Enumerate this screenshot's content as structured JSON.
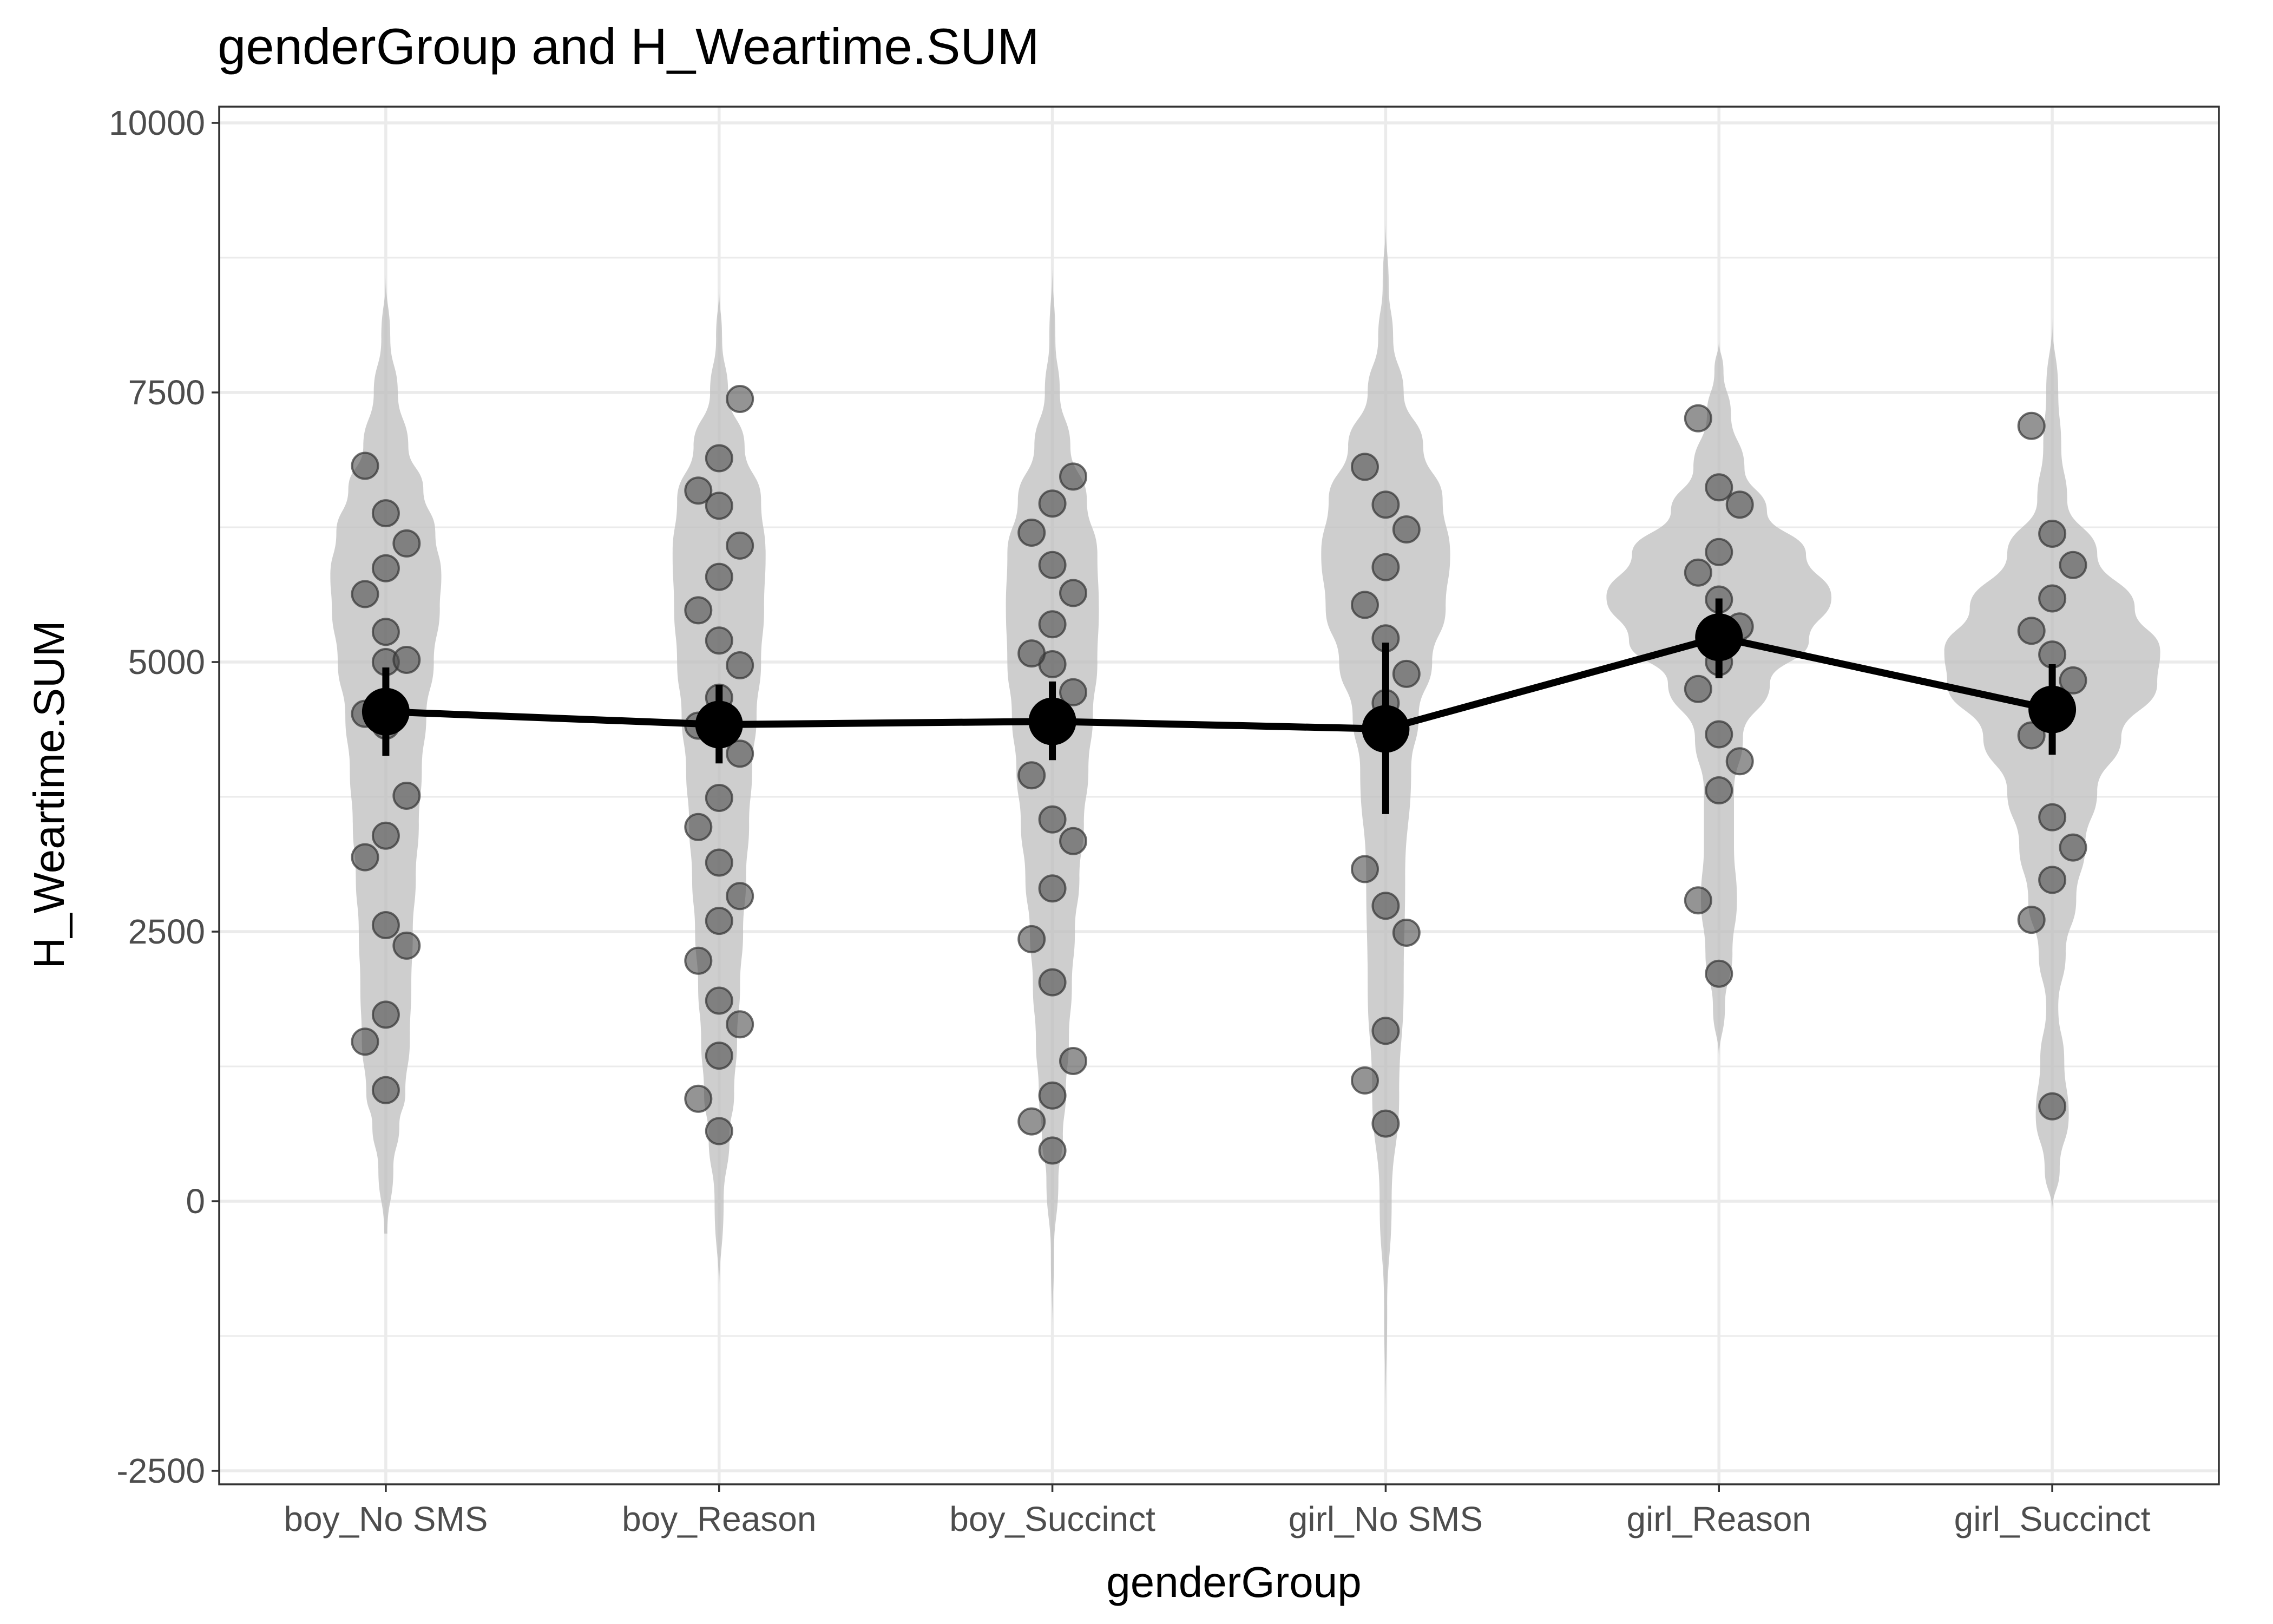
{
  "chart_data": {
    "type": "violin",
    "title": "genderGroup and H_Weartime.SUM",
    "xlabel": "genderGroup",
    "ylabel": "H_Weartime.SUM",
    "ylim": [
      -2500,
      10000
    ],
    "yticks": [
      -2500,
      0,
      2500,
      5000,
      7500,
      10000
    ],
    "grid": true,
    "categories": [
      "boy_No SMS",
      "boy_Reason",
      "boy_Succinct",
      "girl_No SMS",
      "girl_Reason",
      "girl_Succinct"
    ],
    "colors": {
      "violin": "#bdbdbd",
      "points": "#4d4d4d",
      "mean": "#000000"
    },
    "violins": [
      {
        "ymin": -300,
        "ymax": 8600,
        "profile": [
          [
            -300,
            0.01
          ],
          [
            300,
            0.05
          ],
          [
            700,
            0.09
          ],
          [
            1000,
            0.13
          ],
          [
            1500,
            0.16
          ],
          [
            2000,
            0.17
          ],
          [
            2500,
            0.18
          ],
          [
            3000,
            0.2
          ],
          [
            3500,
            0.22
          ],
          [
            4000,
            0.24
          ],
          [
            4500,
            0.27
          ],
          [
            5000,
            0.32
          ],
          [
            5500,
            0.36
          ],
          [
            5800,
            0.37
          ],
          [
            6200,
            0.33
          ],
          [
            6600,
            0.25
          ],
          [
            7000,
            0.15
          ],
          [
            7500,
            0.08
          ],
          [
            8000,
            0.03
          ],
          [
            8600,
            0.0
          ]
        ]
      },
      {
        "ymin": -900,
        "ymax": 8500,
        "profile": [
          [
            -900,
            0.0
          ],
          [
            0,
            0.03
          ],
          [
            600,
            0.07
          ],
          [
            1000,
            0.1
          ],
          [
            1500,
            0.12
          ],
          [
            2000,
            0.14
          ],
          [
            2500,
            0.16
          ],
          [
            3000,
            0.18
          ],
          [
            3500,
            0.2
          ],
          [
            4000,
            0.22
          ],
          [
            4500,
            0.25
          ],
          [
            5000,
            0.28
          ],
          [
            5500,
            0.3
          ],
          [
            6000,
            0.31
          ],
          [
            6500,
            0.28
          ],
          [
            7000,
            0.17
          ],
          [
            7500,
            0.06
          ],
          [
            8000,
            0.02
          ],
          [
            8500,
            0.0
          ]
        ]
      },
      {
        "ymin": -1200,
        "ymax": 8700,
        "profile": [
          [
            -1200,
            0.0
          ],
          [
            -500,
            0.01
          ],
          [
            200,
            0.04
          ],
          [
            600,
            0.07
          ],
          [
            1000,
            0.09
          ],
          [
            1500,
            0.11
          ],
          [
            2000,
            0.13
          ],
          [
            2500,
            0.15
          ],
          [
            3000,
            0.18
          ],
          [
            3500,
            0.21
          ],
          [
            4000,
            0.24
          ],
          [
            4500,
            0.27
          ],
          [
            5000,
            0.3
          ],
          [
            5500,
            0.31
          ],
          [
            6000,
            0.3
          ],
          [
            6500,
            0.23
          ],
          [
            7000,
            0.12
          ],
          [
            7500,
            0.05
          ],
          [
            8000,
            0.02
          ],
          [
            8700,
            0.0
          ]
        ]
      },
      {
        "ymin": -2000,
        "ymax": 9100,
        "profile": [
          [
            -2000,
            0.0
          ],
          [
            -1000,
            0.01
          ],
          [
            0,
            0.04
          ],
          [
            1000,
            0.09
          ],
          [
            2000,
            0.12
          ],
          [
            3000,
            0.13
          ],
          [
            4000,
            0.17
          ],
          [
            4500,
            0.22
          ],
          [
            5000,
            0.31
          ],
          [
            5500,
            0.4
          ],
          [
            6000,
            0.43
          ],
          [
            6500,
            0.38
          ],
          [
            7000,
            0.25
          ],
          [
            7500,
            0.12
          ],
          [
            8000,
            0.05
          ],
          [
            8500,
            0.02
          ],
          [
            9100,
            0.0
          ]
        ]
      },
      {
        "ymin": 1300,
        "ymax": 8000,
        "profile": [
          [
            1300,
            0.0
          ],
          [
            1800,
            0.04
          ],
          [
            2300,
            0.09
          ],
          [
            2800,
            0.12
          ],
          [
            3300,
            0.1
          ],
          [
            3800,
            0.1
          ],
          [
            4300,
            0.16
          ],
          [
            4800,
            0.34
          ],
          [
            5200,
            0.6
          ],
          [
            5600,
            0.75
          ],
          [
            6000,
            0.58
          ],
          [
            6400,
            0.32
          ],
          [
            6800,
            0.17
          ],
          [
            7300,
            0.08
          ],
          [
            7700,
            0.03
          ],
          [
            8000,
            0.0
          ]
        ]
      },
      {
        "ymin": -100,
        "ymax": 8200,
        "profile": [
          [
            -100,
            0.0
          ],
          [
            300,
            0.05
          ],
          [
            800,
            0.11
          ],
          [
            1300,
            0.08
          ],
          [
            1800,
            0.04
          ],
          [
            2300,
            0.09
          ],
          [
            2800,
            0.16
          ],
          [
            3300,
            0.22
          ],
          [
            3800,
            0.3
          ],
          [
            4300,
            0.46
          ],
          [
            4800,
            0.7
          ],
          [
            5100,
            0.72
          ],
          [
            5500,
            0.55
          ],
          [
            6000,
            0.3
          ],
          [
            6500,
            0.1
          ],
          [
            7000,
            0.06
          ],
          [
            7500,
            0.04
          ],
          [
            8200,
            0.0
          ]
        ]
      }
    ],
    "points": [
      [
        1030,
        1480,
        1730,
        2370,
        2560,
        3190,
        3390,
        3760,
        4410,
        4520,
        5000,
        5020,
        5280,
        5630,
        5870,
        6100,
        6380,
        6820
      ],
      [
        650,
        950,
        1350,
        1640,
        1860,
        2230,
        2600,
        2830,
        3140,
        3470,
        3740,
        4150,
        4390,
        4410,
        4670,
        4970,
        5200,
        5480,
        5790,
        6080,
        6450,
        6590,
        6890,
        7440
      ],
      [
        470,
        740,
        980,
        1300,
        2030,
        2430,
        2900,
        3340,
        3540,
        3950,
        4460,
        4720,
        4980,
        5080,
        5350,
        5640,
        5900,
        6200,
        6470,
        6720
      ],
      [
        720,
        1120,
        1580,
        2490,
        2740,
        3080,
        4620,
        4890,
        5220,
        5530,
        5880,
        6230,
        6460,
        6810
      ],
      [
        2110,
        2790,
        3810,
        4080,
        4330,
        4750,
        5000,
        5330,
        5580,
        5830,
        6020,
        6460,
        6620,
        7260
      ],
      [
        880,
        2610,
        2980,
        3280,
        3560,
        4320,
        4590,
        4830,
        5070,
        5290,
        5590,
        5900,
        6190,
        7190
      ]
    ],
    "mean": [
      4540,
      4420,
      4450,
      4380,
      5230,
      4560
    ],
    "ci_lower": [
      4130,
      4060,
      4090,
      3590,
      4850,
      4140
    ],
    "ci_upper": [
      4950,
      4790,
      4820,
      5180,
      5590,
      4980
    ]
  }
}
